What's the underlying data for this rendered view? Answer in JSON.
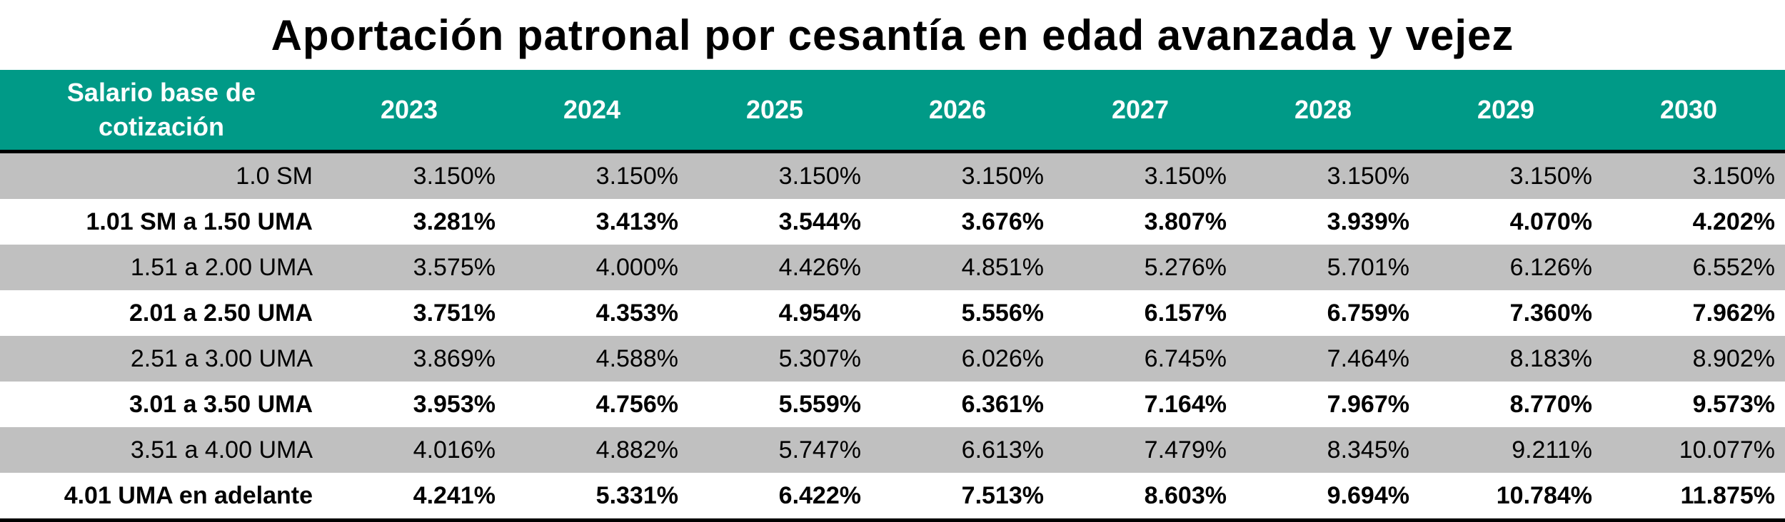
{
  "title": "Aportación patronal por cesantía en edad avanzada y vejez",
  "table": {
    "header": [
      "Salario base de cotización",
      "2023",
      "2024",
      "2025",
      "2026",
      "2027",
      "2028",
      "2029",
      "2030"
    ],
    "rows": [
      [
        "1.0 SM",
        "3.150%",
        "3.150%",
        "3.150%",
        "3.150%",
        "3.150%",
        "3.150%",
        "3.150%",
        "3.150%"
      ],
      [
        "1.01 SM a 1.50 UMA",
        "3.281%",
        "3.413%",
        "3.544%",
        "3.676%",
        "3.807%",
        "3.939%",
        "4.070%",
        "4.202%"
      ],
      [
        "1.51 a 2.00 UMA",
        "3.575%",
        "4.000%",
        "4.426%",
        "4.851%",
        "5.276%",
        "5.701%",
        "6.126%",
        "6.552%"
      ],
      [
        "2.01 a 2.50 UMA",
        "3.751%",
        "4.353%",
        "4.954%",
        "5.556%",
        "6.157%",
        "6.759%",
        "7.360%",
        "7.962%"
      ],
      [
        "2.51 a 3.00 UMA",
        "3.869%",
        "4.588%",
        "5.307%",
        "6.026%",
        "6.745%",
        "7.464%",
        "8.183%",
        "8.902%"
      ],
      [
        "3.01 a 3.50 UMA",
        "3.953%",
        "4.756%",
        "5.559%",
        "6.361%",
        "7.164%",
        "7.967%",
        "8.770%",
        "9.573%"
      ],
      [
        "3.51 a 4.00 UMA",
        "4.016%",
        "4.882%",
        "5.747%",
        "6.613%",
        "7.479%",
        "8.345%",
        "9.211%",
        "10.077%"
      ],
      [
        "4.01 UMA en adelante",
        "4.241%",
        "5.331%",
        "6.422%",
        "7.513%",
        "8.603%",
        "9.694%",
        "10.784%",
        "11.875%"
      ]
    ]
  }
}
